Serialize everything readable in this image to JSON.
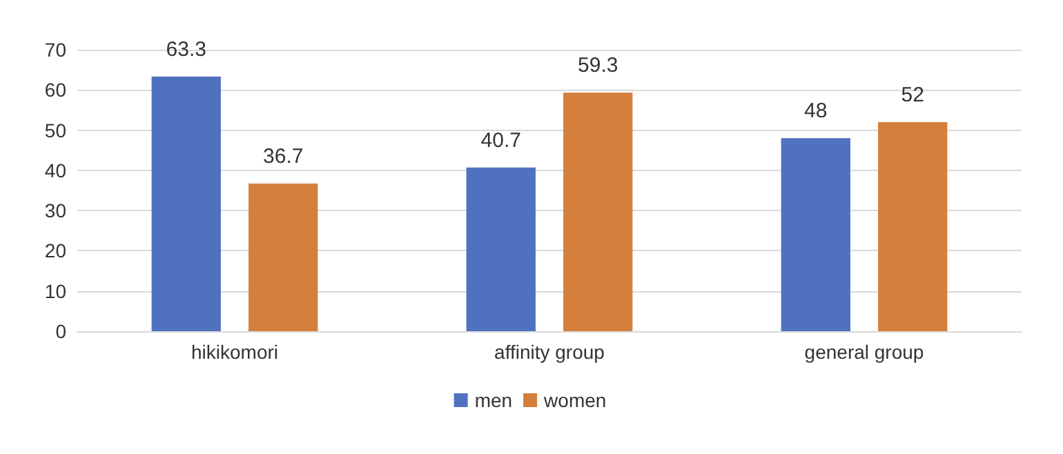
{
  "chart_data": {
    "type": "bar",
    "categories": [
      "hikikomori",
      "affinity group",
      "general group"
    ],
    "series": [
      {
        "name": "men",
        "color": "#5071c0",
        "values": [
          63.3,
          40.7,
          48
        ]
      },
      {
        "name": "women",
        "color": "#d57f3c",
        "values": [
          36.7,
          59.3,
          52
        ]
      }
    ],
    "ylim": [
      0,
      70
    ],
    "yticks": [
      0,
      10,
      20,
      30,
      40,
      50,
      60,
      70
    ],
    "grid": "y",
    "legend": "bottom",
    "data_labels": true
  }
}
